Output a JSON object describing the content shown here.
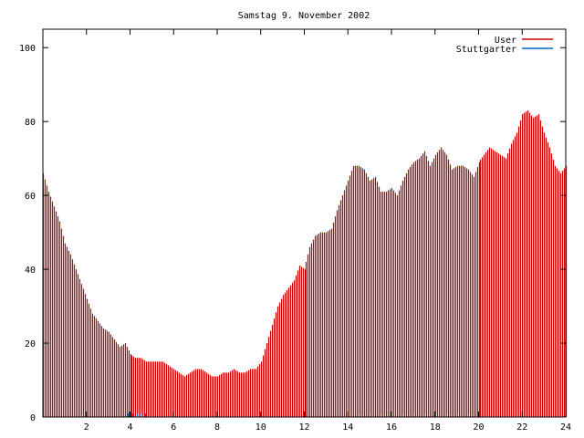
{
  "chart_data": {
    "type": "bar",
    "title": "Samstag 9. November 2002",
    "xlabel": "",
    "ylabel": "",
    "xlim": [
      0,
      24
    ],
    "ylim": [
      0,
      105
    ],
    "x_ticks": [
      2,
      4,
      6,
      8,
      10,
      12,
      14,
      16,
      18,
      20,
      22,
      24
    ],
    "y_ticks": [
      0,
      20,
      40,
      60,
      80,
      100
    ],
    "grid": false,
    "legend_position": "top-right",
    "series": [
      {
        "name": "User",
        "color": "#cc0000",
        "points": [
          [
            0.0,
            66
          ],
          [
            0.25,
            61
          ],
          [
            0.5,
            57
          ],
          [
            0.75,
            53
          ],
          [
            1.0,
            47
          ],
          [
            1.25,
            44
          ],
          [
            1.5,
            40
          ],
          [
            1.75,
            36
          ],
          [
            2.0,
            32
          ],
          [
            2.25,
            28
          ],
          [
            2.5,
            26
          ],
          [
            2.75,
            24
          ],
          [
            3.0,
            23
          ],
          [
            3.25,
            21
          ],
          [
            3.5,
            19
          ],
          [
            3.75,
            20
          ],
          [
            4.0,
            17
          ],
          [
            4.25,
            16
          ],
          [
            4.5,
            16
          ],
          [
            4.75,
            15
          ],
          [
            5.0,
            15
          ],
          [
            5.25,
            15
          ],
          [
            5.5,
            15
          ],
          [
            5.75,
            14
          ],
          [
            6.0,
            13
          ],
          [
            6.25,
            12
          ],
          [
            6.5,
            11
          ],
          [
            6.75,
            12
          ],
          [
            7.0,
            13
          ],
          [
            7.25,
            13
          ],
          [
            7.5,
            12
          ],
          [
            7.75,
            11
          ],
          [
            8.0,
            11
          ],
          [
            8.25,
            12
          ],
          [
            8.5,
            12
          ],
          [
            8.75,
            13
          ],
          [
            9.0,
            12
          ],
          [
            9.25,
            12
          ],
          [
            9.5,
            13
          ],
          [
            9.75,
            13
          ],
          [
            10.0,
            15
          ],
          [
            10.25,
            20
          ],
          [
            10.5,
            25
          ],
          [
            10.75,
            30
          ],
          [
            11.0,
            33
          ],
          [
            11.25,
            35
          ],
          [
            11.5,
            37
          ],
          [
            11.75,
            41
          ],
          [
            12.0,
            40
          ],
          [
            12.25,
            46
          ],
          [
            12.5,
            49
          ],
          [
            12.75,
            50
          ],
          [
            13.0,
            50
          ],
          [
            13.25,
            51
          ],
          [
            13.5,
            56
          ],
          [
            13.75,
            60
          ],
          [
            14.0,
            64
          ],
          [
            14.25,
            68
          ],
          [
            14.5,
            68
          ],
          [
            14.75,
            67
          ],
          [
            15.0,
            64
          ],
          [
            15.25,
            65
          ],
          [
            15.5,
            61
          ],
          [
            15.75,
            61
          ],
          [
            16.0,
            62
          ],
          [
            16.25,
            60
          ],
          [
            16.5,
            64
          ],
          [
            16.75,
            67
          ],
          [
            17.0,
            69
          ],
          [
            17.25,
            70
          ],
          [
            17.5,
            72
          ],
          [
            17.75,
            68
          ],
          [
            18.0,
            71
          ],
          [
            18.25,
            73
          ],
          [
            18.5,
            71
          ],
          [
            18.75,
            67
          ],
          [
            19.0,
            68
          ],
          [
            19.25,
            68
          ],
          [
            19.5,
            67
          ],
          [
            19.75,
            65
          ],
          [
            20.0,
            69
          ],
          [
            20.25,
            71
          ],
          [
            20.5,
            73
          ],
          [
            20.75,
            72
          ],
          [
            21.0,
            71
          ],
          [
            21.25,
            70
          ],
          [
            21.5,
            74
          ],
          [
            21.75,
            77
          ],
          [
            22.0,
            82
          ],
          [
            22.25,
            83
          ],
          [
            22.5,
            81
          ],
          [
            22.75,
            82
          ],
          [
            23.0,
            77
          ],
          [
            23.25,
            73
          ],
          [
            23.5,
            68
          ],
          [
            23.75,
            66
          ],
          [
            24.0,
            68
          ]
        ]
      },
      {
        "name": "Stuttgarter",
        "color": "#0066cc",
        "points": [
          [
            3.9,
            1
          ],
          [
            4.1,
            1
          ],
          [
            4.3,
            1
          ],
          [
            4.5,
            1
          ],
          [
            4.7,
            1
          ],
          [
            14.0,
            1
          ],
          [
            14.5,
            1
          ],
          [
            15.0,
            1
          ],
          [
            15.5,
            1
          ],
          [
            16.0,
            1
          ],
          [
            16.5,
            1
          ],
          [
            17.0,
            1
          ],
          [
            17.5,
            1
          ],
          [
            18.0,
            1
          ],
          [
            18.5,
            1
          ],
          [
            19.0,
            1
          ],
          [
            19.5,
            1
          ]
        ]
      }
    ]
  }
}
